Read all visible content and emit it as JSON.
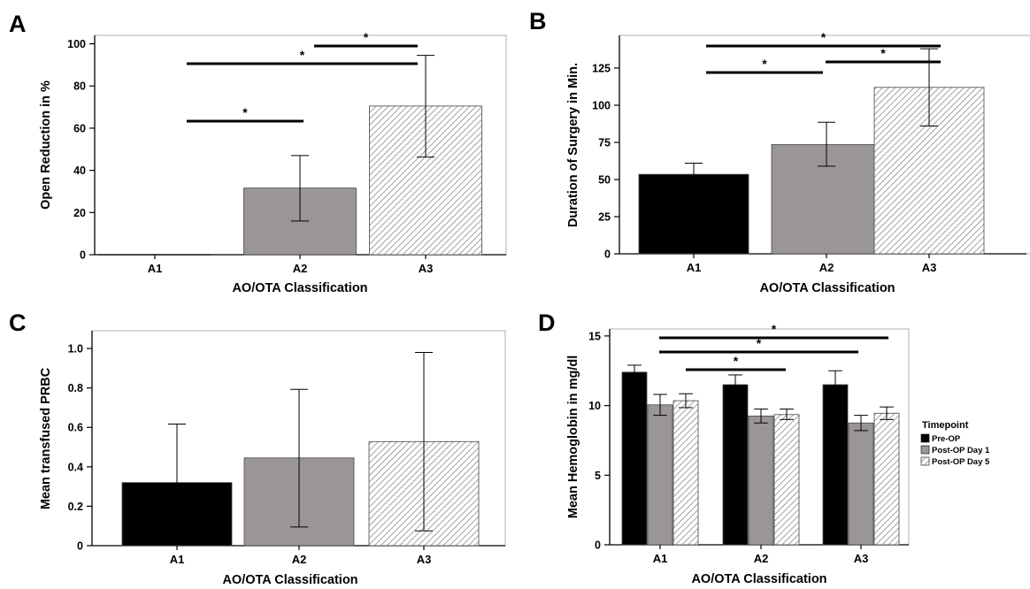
{
  "chart_data": [
    {
      "panel": "A",
      "type": "bar",
      "categories": [
        "A1",
        "A2",
        "A3"
      ],
      "values": [
        0,
        31.6,
        70.5
      ],
      "error_low": [
        0,
        16,
        46.3
      ],
      "error_high": [
        0,
        47,
        94.5
      ],
      "fills": [
        "#000000",
        "#9a9696",
        "hatch"
      ],
      "xlabel": "AO/OTA Classification",
      "ylabel": "Open Reduction in %",
      "ylim": [
        0,
        104
      ],
      "yticks": [
        0,
        20,
        40,
        60,
        80,
        100
      ],
      "significance": [
        {
          "from": "A1",
          "to": "A2",
          "label": "*"
        },
        {
          "from": "A1",
          "to": "A3",
          "label": "*"
        },
        {
          "from": "A2",
          "to": "A3",
          "label": "*"
        }
      ]
    },
    {
      "panel": "B",
      "type": "bar",
      "categories": [
        "A1",
        "A2",
        "A3"
      ],
      "values": [
        53.5,
        73.5,
        112
      ],
      "error_low": [
        46,
        59,
        86
      ],
      "error_high": [
        61,
        88.5,
        138
      ],
      "fills": [
        "#000000",
        "#9a9696",
        "hatch"
      ],
      "xlabel": "AO/OTA Classification",
      "ylabel": "Duration of Surgery in Min.",
      "ylim": [
        0,
        147
      ],
      "yticks": [
        0,
        25,
        50,
        75,
        100,
        125
      ],
      "significance": [
        {
          "from": "A1",
          "to": "A2",
          "label": "*"
        },
        {
          "from": "A2",
          "to": "A3",
          "label": "*"
        },
        {
          "from": "A1",
          "to": "A3",
          "label": "*"
        }
      ]
    },
    {
      "panel": "C",
      "type": "bar",
      "categories": [
        "A1",
        "A2",
        "A3"
      ],
      "values": [
        0.32,
        0.445,
        0.528
      ],
      "error_low": [
        0.02,
        0.095,
        0.075
      ],
      "error_high": [
        0.617,
        0.793,
        0.98
      ],
      "fills": [
        "#000000",
        "#9a9696",
        "hatch"
      ],
      "xlabel": "AO/OTA Classification",
      "ylabel": "Mean transfused PRBC",
      "ylim": [
        0,
        1.09
      ],
      "yticks": [
        0,
        0.2,
        0.4,
        0.6,
        0.8,
        1.0
      ],
      "ytick_labels": [
        "0",
        "0.2",
        "0.4",
        "0.6",
        "0.8",
        "1.0"
      ],
      "significance": []
    },
    {
      "panel": "D",
      "type": "bar",
      "categories": [
        "A1",
        "A2",
        "A3"
      ],
      "series": [
        {
          "name": "Pre-OP",
          "fill": "#000000",
          "values": [
            12.4,
            11.5,
            11.5
          ],
          "error_low": [
            11.9,
            10.8,
            10.5
          ],
          "error_high": [
            12.9,
            12.2,
            12.5
          ]
        },
        {
          "name": "Post-OP Day 1",
          "fill": "#9a9696",
          "values": [
            10.05,
            9.25,
            8.75
          ],
          "error_low": [
            9.3,
            8.75,
            8.2
          ],
          "error_high": [
            10.8,
            9.75,
            9.3
          ]
        },
        {
          "name": "Post-OP Day 5",
          "fill": "hatch",
          "values": [
            10.35,
            9.35,
            9.45
          ],
          "error_low": [
            9.85,
            9.0,
            9.0
          ],
          "error_high": [
            10.85,
            9.75,
            9.9
          ]
        }
      ],
      "xlabel": "AO/OTA Classification",
      "ylabel": "Mean Hemoglobin in mg/dl",
      "ylim": [
        0,
        15.5
      ],
      "yticks": [
        0,
        5,
        10,
        15
      ],
      "legend": {
        "title": "Timepoint",
        "position": "right"
      },
      "significance": [
        {
          "from": "A1",
          "to": "A2",
          "label": "*"
        },
        {
          "from": "A1",
          "to": "A3",
          "label": "*"
        },
        {
          "from": "A1",
          "to": "A3",
          "label": "*"
        }
      ]
    }
  ],
  "colors": {
    "black": "#000000",
    "gray": "#9a9696",
    "hatch_line": "#8a8a8a"
  }
}
